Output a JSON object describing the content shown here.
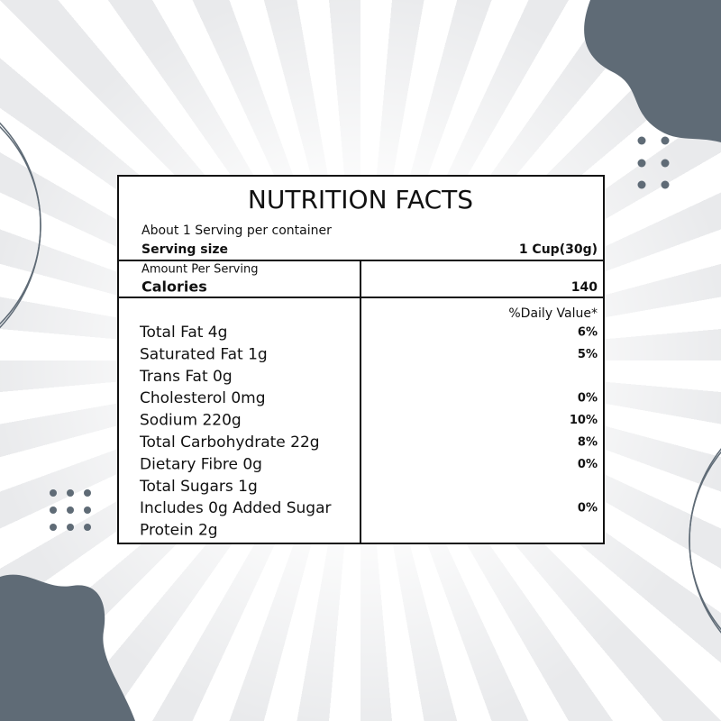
{
  "label": {
    "title": "NUTRITION FACTS",
    "servings_per_container": "About 1 Serving per container",
    "serving_size": {
      "label": "Serving size",
      "value": "1 Cup(30g)"
    },
    "amount_per_serving": "Amount Per Serving",
    "calories": {
      "label": "Calories",
      "value": 140
    },
    "daily_value_header": "%Daily Value*",
    "rows": [
      {
        "nutrient": "Total Fat 4g",
        "daily_value": "6%"
      },
      {
        "nutrient": "Saturated Fat 1g",
        "daily_value": "5%"
      },
      {
        "nutrient": "Trans Fat 0g"
      },
      {
        "nutrient": "Cholesterol 0mg",
        "daily_value": "0%"
      },
      {
        "nutrient": "Sodium 220g",
        "daily_value": "10%"
      },
      {
        "nutrient": "Total Carbohydrate 22g",
        "daily_value": "8%"
      },
      {
        "nutrient": "Dietary Fibre 0g",
        "daily_value": "0%"
      },
      {
        "nutrient": "Total Sugars 1g"
      },
      {
        "nutrient": "Includes 0g Added Sugar",
        "daily_value": "0%"
      },
      {
        "nutrient": "Protein 2g"
      }
    ]
  }
}
